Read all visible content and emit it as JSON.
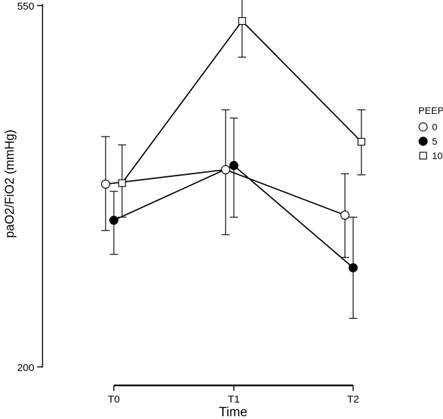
{
  "chart_data": {
    "type": "line",
    "title": "",
    "xlabel": "Time",
    "ylabel": "paO2/FiO2 (mmHg)",
    "categories": [
      "T0",
      "T1",
      "T2"
    ],
    "ylim": [
      200,
      550
    ],
    "yticks": [
      200,
      550
    ],
    "grid": false,
    "error_bars": true,
    "legend": {
      "title": "PEEP",
      "position": "right"
    },
    "series": [
      {
        "name": "0",
        "marker": "open-circle",
        "values": [
          377,
          391,
          347
        ],
        "error_low": [
          332,
          328,
          306
        ],
        "error_high": [
          423,
          449,
          387
        ]
      },
      {
        "name": "5",
        "marker": "filled-circle",
        "values": [
          342,
          395,
          296
        ],
        "error_low": [
          309,
          345,
          247
        ],
        "error_high": [
          370,
          441,
          345
        ]
      },
      {
        "name": "10",
        "marker": "open-square",
        "values": [
          378,
          535,
          418
        ],
        "error_low": [
          345,
          500,
          386
        ],
        "error_high": [
          415,
          570,
          449
        ]
      }
    ]
  }
}
